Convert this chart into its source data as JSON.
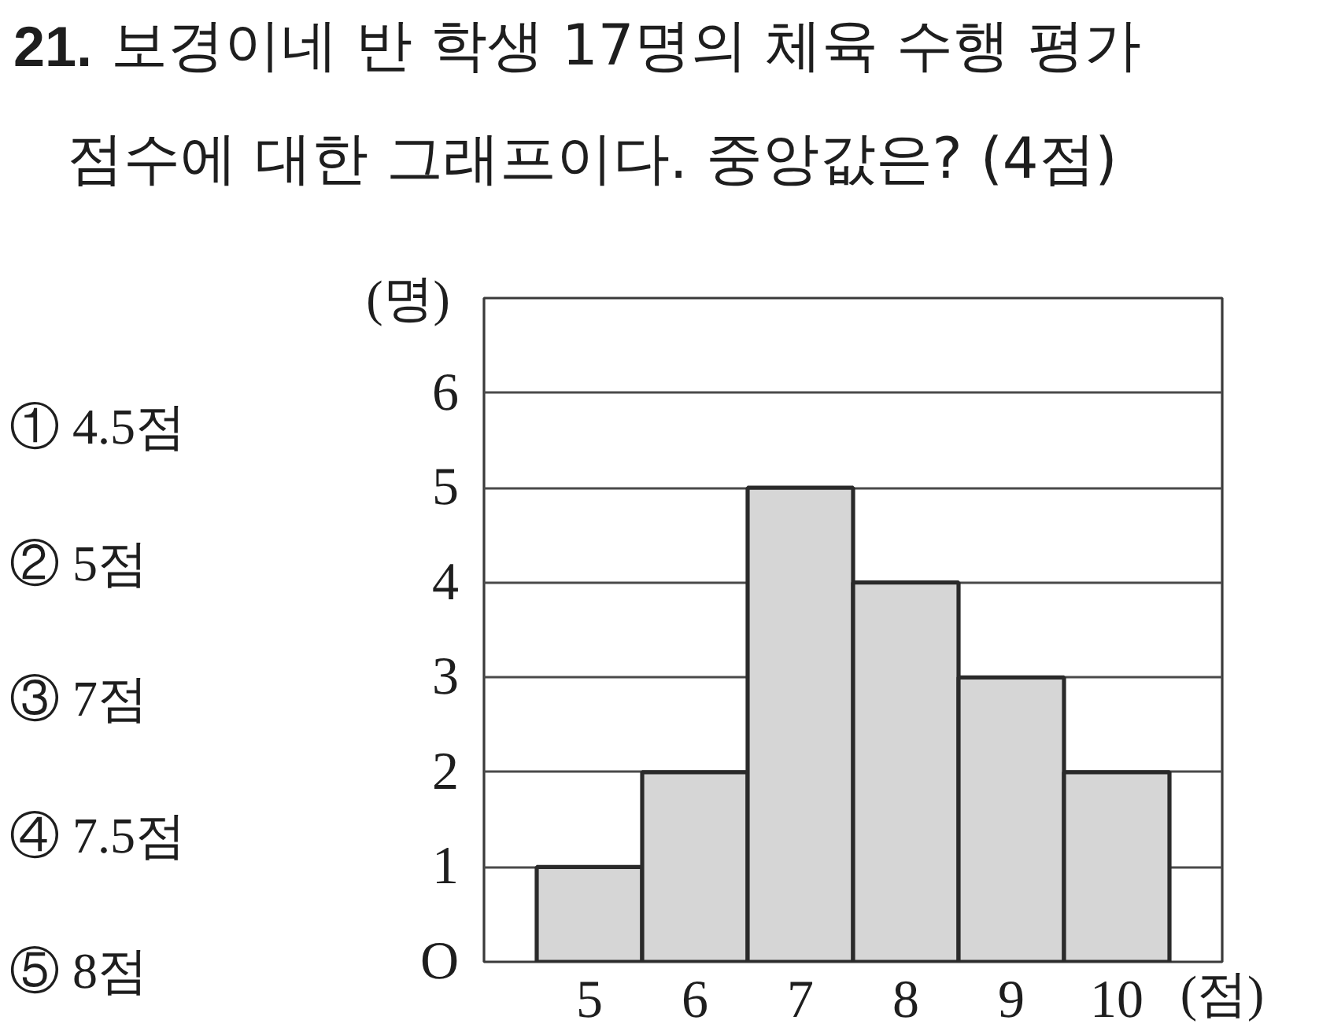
{
  "chart_data": {
    "type": "bar",
    "title": "21. 보경이네 반 학생 17명의 체육 수행 평가 점수에 대한 그래프이다. 중앙값은? (4점)",
    "xlabel": "(점)",
    "ylabel": "(명)",
    "x": [
      5,
      6,
      7,
      8,
      9,
      10
    ],
    "values": [
      1,
      2,
      5,
      4,
      3,
      2
    ],
    "color": "#d6d6d6",
    "xlim": [
      4,
      11
    ],
    "xticks": [
      5,
      6,
      7,
      8,
      9,
      10
    ],
    "ylim": [
      0,
      7
    ],
    "yticks": [
      {
        "value": 0,
        "label": "O"
      },
      1,
      2,
      3,
      4,
      5,
      6
    ],
    "grid": "y",
    "annotations": [
      "① 4.5점",
      "② 5점",
      "③ 7점",
      "④ 7.5점",
      "⑤ 8점"
    ]
  }
}
